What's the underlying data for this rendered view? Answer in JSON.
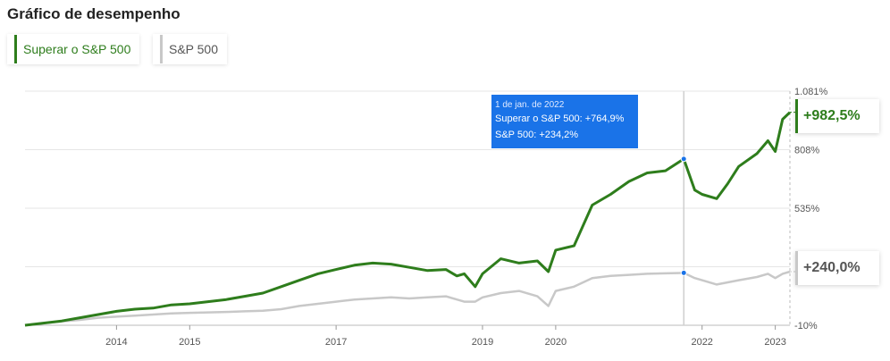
{
  "header": {
    "title": "Gráfico de desempenho"
  },
  "legend": [
    {
      "label": "Superar o S&P 500",
      "color": "#2e7d1c"
    },
    {
      "label": "S&P 500",
      "color": "#c8c8c8"
    }
  ],
  "tooltip": {
    "date": "1 de jan. de 2022",
    "line_a": "Superar o S&P 500: +764,9%",
    "line_b": "S&P 500: +234,2%"
  },
  "end_badges": {
    "a": "+982,5%",
    "b": "+240,0%"
  },
  "chart_data": {
    "type": "line",
    "title": "Gráfico de desempenho",
    "x_tick_labels": [
      "2014",
      "2015",
      "2017",
      "2019",
      "2020",
      "2022",
      "2023"
    ],
    "x_tick_years": [
      2014.0,
      2015.0,
      2017.0,
      2019.0,
      2020.0,
      2022.0,
      2023.0
    ],
    "y_tick_labels": [
      "1.081%",
      "808%",
      "535%",
      "-10%"
    ],
    "y_tick_values": [
      1081,
      808,
      535,
      -10
    ],
    "ylim": [
      -10,
      1081
    ],
    "xlim": [
      2012.75,
      2023.2
    ],
    "hover_x": 2021.75,
    "grid": true,
    "legend_position": "top-left",
    "series": [
      {
        "name": "Superar o S&P 500",
        "color": "#2e7d1c",
        "x": [
          2012.75,
          2013.0,
          2013.25,
          2013.5,
          2013.75,
          2014.0,
          2014.25,
          2014.5,
          2014.75,
          2015.0,
          2015.25,
          2015.5,
          2015.75,
          2016.0,
          2016.25,
          2016.5,
          2016.75,
          2017.0,
          2017.25,
          2017.5,
          2017.75,
          2018.0,
          2018.25,
          2018.5,
          2018.65,
          2018.75,
          2018.9,
          2019.0,
          2019.25,
          2019.5,
          2019.75,
          2019.9,
          2020.0,
          2020.25,
          2020.5,
          2020.75,
          2021.0,
          2021.25,
          2021.5,
          2021.75,
          2021.9,
          2022.0,
          2022.2,
          2022.35,
          2022.5,
          2022.75,
          2022.9,
          2023.0,
          2023.1,
          2023.2
        ],
        "values": [
          -10,
          0,
          10,
          25,
          40,
          55,
          65,
          70,
          85,
          90,
          100,
          110,
          125,
          140,
          170,
          200,
          230,
          250,
          270,
          280,
          275,
          260,
          245,
          250,
          220,
          230,
          170,
          230,
          300,
          280,
          290,
          240,
          340,
          360,
          550,
          600,
          660,
          700,
          710,
          764.9,
          620,
          600,
          580,
          650,
          730,
          790,
          850,
          800,
          950,
          982.5
        ]
      },
      {
        "name": "S&P 500",
        "color": "#c8c8c8",
        "x": [
          2012.75,
          2013.0,
          2013.25,
          2013.5,
          2013.75,
          2014.0,
          2014.25,
          2014.5,
          2014.75,
          2015.0,
          2015.25,
          2015.5,
          2015.75,
          2016.0,
          2016.25,
          2016.5,
          2016.75,
          2017.0,
          2017.25,
          2017.5,
          2017.75,
          2018.0,
          2018.25,
          2018.5,
          2018.65,
          2018.75,
          2018.9,
          2019.0,
          2019.25,
          2019.5,
          2019.75,
          2019.9,
          2020.0,
          2020.25,
          2020.5,
          2020.75,
          2021.0,
          2021.25,
          2021.5,
          2021.75,
          2021.9,
          2022.0,
          2022.2,
          2022.35,
          2022.5,
          2022.75,
          2022.9,
          2023.0,
          2023.1,
          2023.2
        ],
        "values": [
          -10,
          0,
          8,
          15,
          25,
          30,
          35,
          40,
          45,
          48,
          50,
          52,
          55,
          58,
          65,
          80,
          90,
          100,
          110,
          115,
          120,
          115,
          120,
          125,
          110,
          100,
          100,
          120,
          140,
          150,
          125,
          80,
          150,
          170,
          210,
          220,
          225,
          230,
          232,
          234.2,
          210,
          200,
          180,
          190,
          200,
          215,
          230,
          210,
          230,
          240
        ]
      }
    ]
  }
}
